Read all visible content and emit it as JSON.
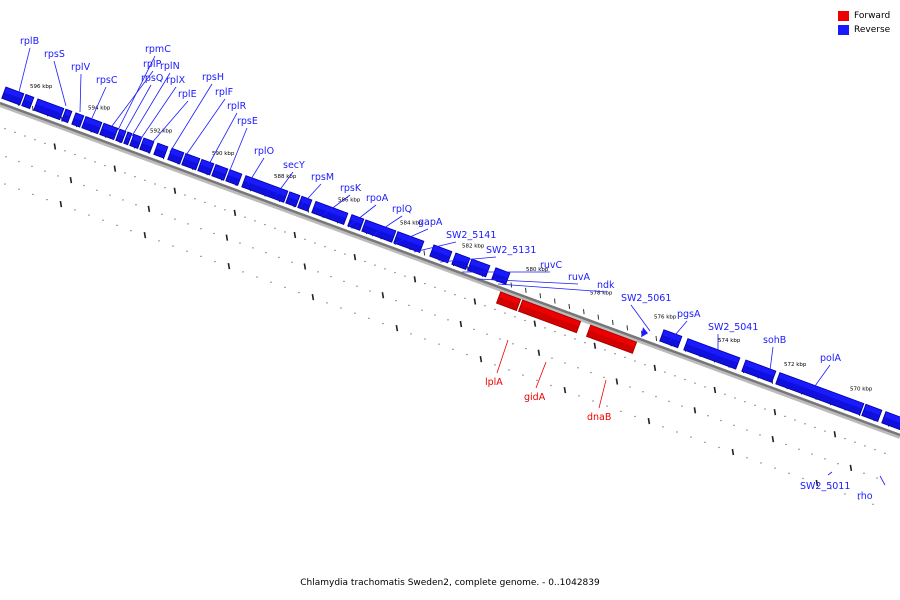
{
  "caption": "Chlamydia trachomatis Sweden2, complete genome. - 0..1042839",
  "legend": [
    {
      "label": "Forward",
      "color": "#ee0000"
    },
    {
      "label": "Reverse",
      "color": "#1a1aff"
    }
  ],
  "colors": {
    "forward": "#ee0000",
    "reverse": "#1a1aff",
    "backbone": "#777777"
  },
  "scale_labels": [
    "596 kbp",
    "594 kbp",
    "592 kbp",
    "590 kbp",
    "588 kbp",
    "586 kbp",
    "584 kbp",
    "582 kbp",
    "580 kbp",
    "578 kbp",
    "576 kbp",
    "574 kbp",
    "572 kbp",
    "570 kbp"
  ],
  "genes_reverse": [
    "rplB",
    "rpsS",
    "rplV",
    "rpsC",
    "rplP",
    "rpmC",
    "rpsQ",
    "rplN",
    "rplX",
    "rplE",
    "rpsH",
    "rplF",
    "rplR",
    "rpsE",
    "rplO",
    "secY",
    "rpsM",
    "rpsK",
    "rpoA",
    "rplQ",
    "gapA",
    "SW2_5141",
    "SW2_5131",
    "ruvC",
    "ruvA",
    "ndk",
    "SW2_5061",
    "pgsA",
    "SW2_5041",
    "sohB",
    "polA",
    "SW2_5011",
    "rho"
  ],
  "genes_forward": [
    "lplA",
    "gidA",
    "dnaB"
  ]
}
